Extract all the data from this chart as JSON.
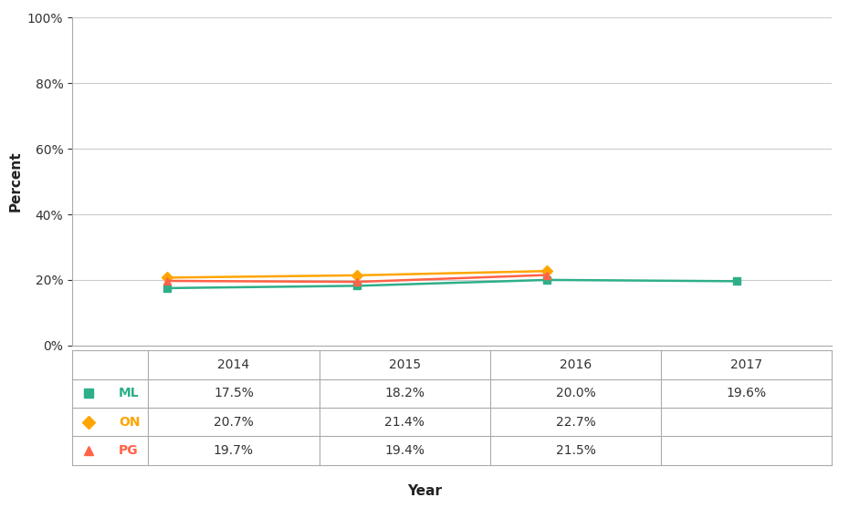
{
  "series": [
    {
      "label": "ML",
      "color": "#2EAF8A",
      "marker": "s",
      "years": [
        2014,
        2015,
        2016,
        2017
      ],
      "values": [
        17.5,
        18.2,
        20.0,
        19.6
      ]
    },
    {
      "label": "ON",
      "color": "#FFA500",
      "marker": "D",
      "years": [
        2014,
        2015,
        2016
      ],
      "values": [
        20.7,
        21.4,
        22.7
      ]
    },
    {
      "label": "PG",
      "color": "#FF6347",
      "marker": "^",
      "years": [
        2014,
        2015,
        2016
      ],
      "values": [
        19.7,
        19.4,
        21.5
      ]
    }
  ],
  "ylabel": "Percent",
  "xlabel": "Year",
  "ylim": [
    0,
    100
  ],
  "yticks": [
    0,
    20,
    40,
    60,
    80,
    100
  ],
  "xticks": [
    2014,
    2015,
    2016,
    2017
  ],
  "background_color": "#ffffff",
  "grid_color": "#cccccc",
  "table_header_years": [
    "2014",
    "2015",
    "2016",
    "2017"
  ],
  "table_rows": [
    [
      "ML",
      "17.5%",
      "18.2%",
      "20.0%",
      "19.6%"
    ],
    [
      "ON",
      "20.7%",
      "21.4%",
      "22.7%",
      ""
    ],
    [
      "PG",
      "19.7%",
      "19.4%",
      "21.5%",
      ""
    ]
  ],
  "row_colors": {
    "ML": "#2EAF8A",
    "ON": "#FFA500",
    "PG": "#FF6347"
  },
  "row_markers": {
    "ML": "s",
    "ON": "D",
    "PG": "^"
  }
}
